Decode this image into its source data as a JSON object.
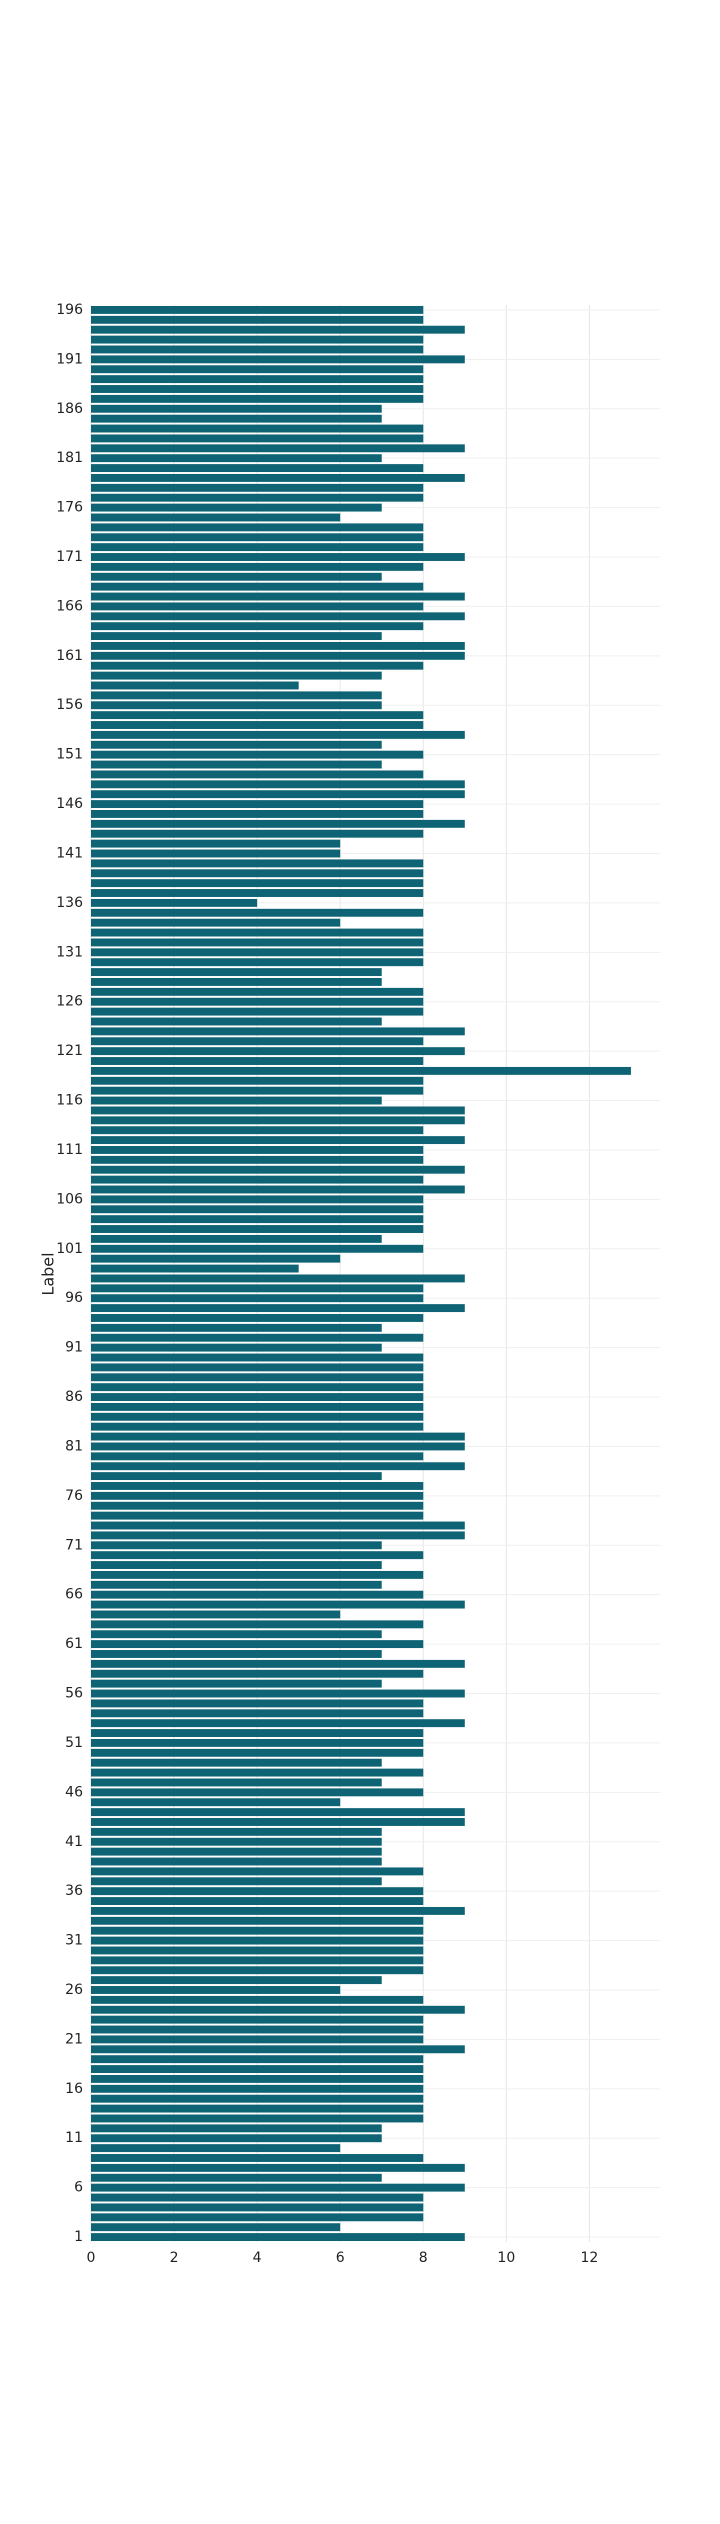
{
  "chart_data": {
    "type": "barh",
    "ylabel": "Label",
    "color": "#0e6374",
    "grid": true,
    "categories": [
      "1",
      null,
      null,
      null,
      null,
      "6",
      null,
      null,
      null,
      null,
      "11",
      null,
      null,
      null,
      null,
      "16",
      null,
      null,
      null,
      null,
      "21",
      null,
      null,
      null,
      null,
      "26",
      null,
      null,
      null,
      null,
      "31",
      null,
      null,
      null,
      null,
      "36",
      null,
      null,
      null,
      null,
      "41",
      null,
      null,
      null,
      null,
      "46",
      null,
      null,
      null,
      null,
      "51",
      null,
      null,
      null,
      null,
      "56",
      null,
      null,
      null,
      null,
      "61",
      null,
      null,
      null,
      null,
      "66",
      null,
      null,
      null,
      null,
      "71",
      null,
      null,
      null,
      null,
      "76",
      null,
      null,
      null,
      null,
      "81",
      null,
      null,
      null,
      null,
      "86",
      null,
      null,
      null,
      null,
      "91",
      null,
      null,
      null,
      null,
      "96",
      null,
      null,
      null,
      null,
      "101",
      null,
      null,
      null,
      null,
      "106",
      null,
      null,
      null,
      null,
      "111",
      null,
      null,
      null,
      null,
      "116",
      null,
      null,
      null,
      null,
      "121",
      null,
      null,
      null,
      null,
      "126",
      null,
      null,
      null,
      null,
      "131",
      null,
      null,
      null,
      null,
      "136",
      null,
      null,
      null,
      null,
      "141",
      null,
      null,
      null,
      null,
      "146",
      null,
      null,
      null,
      null,
      "151",
      null,
      null,
      null,
      null,
      "156",
      null,
      null,
      null,
      null,
      "161",
      null,
      null,
      null,
      null,
      "166",
      null,
      null,
      null,
      null,
      "171",
      null,
      null,
      null,
      null,
      "176",
      null,
      null,
      null,
      null,
      "181",
      null,
      null,
      null,
      null,
      "186",
      null,
      null,
      null,
      null,
      "191",
      null,
      null,
      null,
      null,
      "196"
    ],
    "values": [
      9,
      6,
      8,
      8,
      8,
      9,
      7,
      9,
      8,
      6,
      7,
      7,
      8,
      8,
      8,
      8,
      8,
      8,
      8,
      9,
      8,
      8,
      8,
      9,
      8,
      6,
      7,
      8,
      8,
      8,
      8,
      8,
      8,
      9,
      8,
      8,
      7,
      8,
      7,
      7,
      7,
      7,
      9,
      9,
      6,
      8,
      7,
      8,
      7,
      8,
      8,
      8,
      9,
      8,
      8,
      9,
      7,
      8,
      9,
      7,
      8,
      7,
      8,
      6,
      9,
      8,
      7,
      8,
      7,
      8,
      7,
      9,
      9,
      8,
      8,
      8,
      8,
      7,
      9,
      8,
      9,
      9,
      8,
      8,
      8,
      8,
      8,
      8,
      8,
      8,
      7,
      8,
      7,
      8,
      9,
      8,
      8,
      9,
      5,
      6,
      8,
      7,
      8,
      8,
      8,
      8,
      9,
      8,
      9,
      8,
      8,
      9,
      8,
      9,
      9,
      7,
      8,
      8,
      13,
      8,
      9,
      8,
      9,
      7,
      8,
      8,
      8,
      7,
      7,
      8,
      8,
      8,
      8,
      6,
      8,
      4,
      8,
      8,
      8,
      8,
      6,
      6,
      8,
      9,
      8,
      8,
      9,
      9,
      8,
      7,
      8,
      7,
      9,
      8,
      8,
      7,
      7,
      5,
      7,
      8,
      9,
      9,
      7,
      8,
      9,
      8,
      9,
      8,
      7,
      8,
      9,
      8,
      8,
      8,
      6,
      7,
      8,
      8,
      9,
      8,
      7,
      9,
      8,
      8,
      7,
      7,
      8,
      8,
      8,
      8,
      9,
      8,
      8,
      9,
      8,
      8
    ],
    "xlim": [
      0,
      13.7
    ],
    "xticks": [
      0,
      2,
      4,
      6,
      8,
      10,
      12
    ]
  }
}
